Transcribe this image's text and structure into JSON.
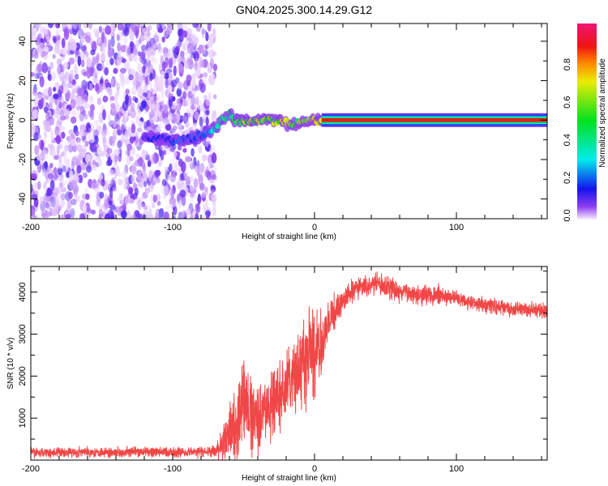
{
  "chart_data": [
    {
      "type": "heatmap",
      "title": "GN04.2025.300.14.29.G12",
      "xlabel": "Height of straight line (km)",
      "ylabel": "Frequency (Hz)",
      "xlim": [
        -200,
        164
      ],
      "ylim": [
        -50,
        49
      ],
      "xticks": [
        -200,
        -100,
        0,
        100
      ],
      "yticks": [
        -40,
        -20,
        0,
        20,
        40
      ],
      "colorbar": {
        "label": "Normalized spectral amplitude",
        "range": [
          0,
          1
        ],
        "ticks": [
          "0.0",
          "0.2",
          "0.4",
          "0.6",
          "0.8"
        ]
      },
      "noise_region_x": [
        -200,
        -73
      ],
      "ridge": [
        {
          "x": -120,
          "f": -9,
          "a": 0.15
        },
        {
          "x": -100,
          "f": -10,
          "a": 0.2
        },
        {
          "x": -90,
          "f": -10,
          "a": 0.25
        },
        {
          "x": -80,
          "f": -8,
          "a": 0.25
        },
        {
          "x": -70,
          "f": -4,
          "a": 0.35
        },
        {
          "x": -65,
          "f": 0,
          "a": 0.45
        },
        {
          "x": -60,
          "f": 3,
          "a": 0.5
        },
        {
          "x": -55,
          "f": 0,
          "a": 0.6
        },
        {
          "x": -50,
          "f": -1,
          "a": 0.75
        },
        {
          "x": -40,
          "f": 0,
          "a": 0.7
        },
        {
          "x": -30,
          "f": 0,
          "a": 0.8
        },
        {
          "x": -20,
          "f": -1,
          "a": 0.75
        },
        {
          "x": -15,
          "f": -3,
          "a": 0.7
        },
        {
          "x": -10,
          "f": -1,
          "a": 0.7
        },
        {
          "x": -2,
          "f": 0,
          "a": 0.85
        },
        {
          "x": 5,
          "f": 0,
          "a": 0.9
        },
        {
          "x": 164,
          "f": 0,
          "a": 0.95
        }
      ]
    },
    {
      "type": "line",
      "xlabel": "Height of straight line (km)",
      "ylabel": "SNR (10 * v/v)",
      "xlim": [
        -200,
        164
      ],
      "ylim": [
        0,
        4610
      ],
      "xticks": [
        -200,
        -100,
        0,
        100
      ],
      "yticks": [
        1000,
        2000,
        3000,
        4000
      ],
      "series": [
        {
          "name": "SNR",
          "color": "#ee3333",
          "trend_x": [
            -200,
            -70,
            -62,
            -55,
            -50,
            -40,
            -30,
            -20,
            -10,
            -3,
            5,
            12,
            20,
            30,
            45,
            60,
            80,
            100,
            120,
            140,
            164
          ],
          "trend_y": [
            180,
            200,
            500,
            900,
            1300,
            1100,
            1300,
            1700,
            2200,
            2400,
            2800,
            3400,
            3800,
            4100,
            4200,
            4000,
            3950,
            3850,
            3700,
            3600,
            3550
          ],
          "noise_amplitude": [
            120,
            130,
            500,
            900,
            1100,
            800,
            800,
            800,
            900,
            1300,
            700,
            400,
            300,
            250,
            250,
            250,
            250,
            200,
            200,
            180,
            180
          ]
        }
      ]
    }
  ]
}
